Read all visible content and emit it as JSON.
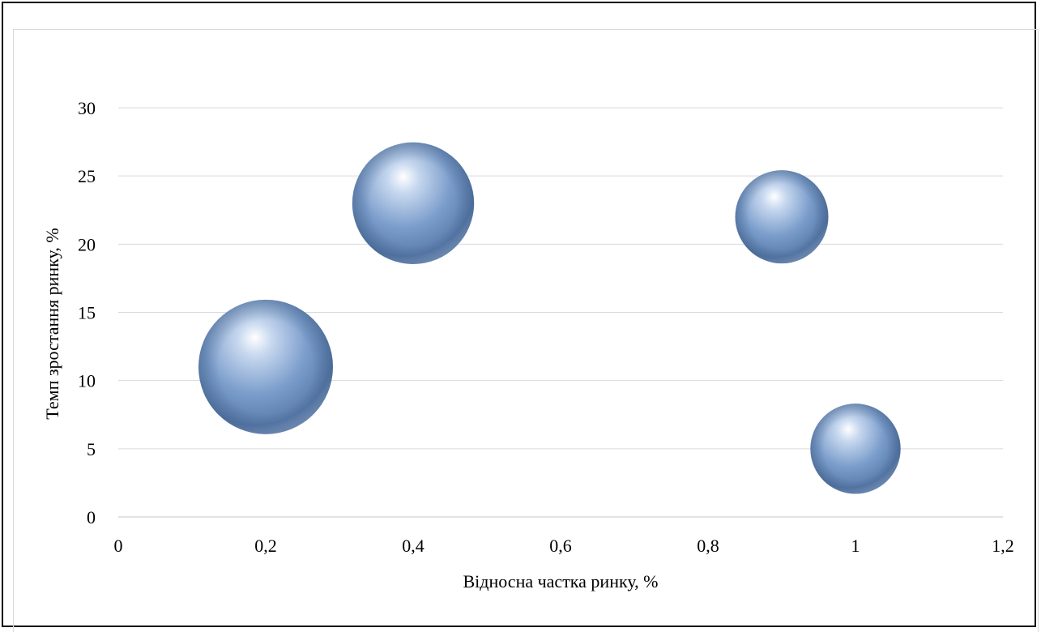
{
  "chart_data": {
    "type": "bubble",
    "title": "",
    "xlabel": "Відносна частка ринку, %",
    "ylabel": "Темп зростання ринку, %",
    "xlim": [
      0,
      1.2
    ],
    "ylim": [
      0,
      30
    ],
    "x_ticks": [
      "0",
      "0,2",
      "0,4",
      "0,6",
      "0,8",
      "1",
      "1,2"
    ],
    "y_ticks": [
      "0",
      "5",
      "10",
      "15",
      "20",
      "25",
      "30"
    ],
    "grid": true,
    "legend": "none",
    "series": [
      {
        "color": "#6f92c0",
        "points": [
          {
            "x": 0.2,
            "y": 11,
            "size": 5
          },
          {
            "x": 0.4,
            "y": 23,
            "size": 4.1
          },
          {
            "x": 0.9,
            "y": 22,
            "size": 2.4
          },
          {
            "x": 1.0,
            "y": 5,
            "size": 2.25
          }
        ]
      }
    ]
  }
}
